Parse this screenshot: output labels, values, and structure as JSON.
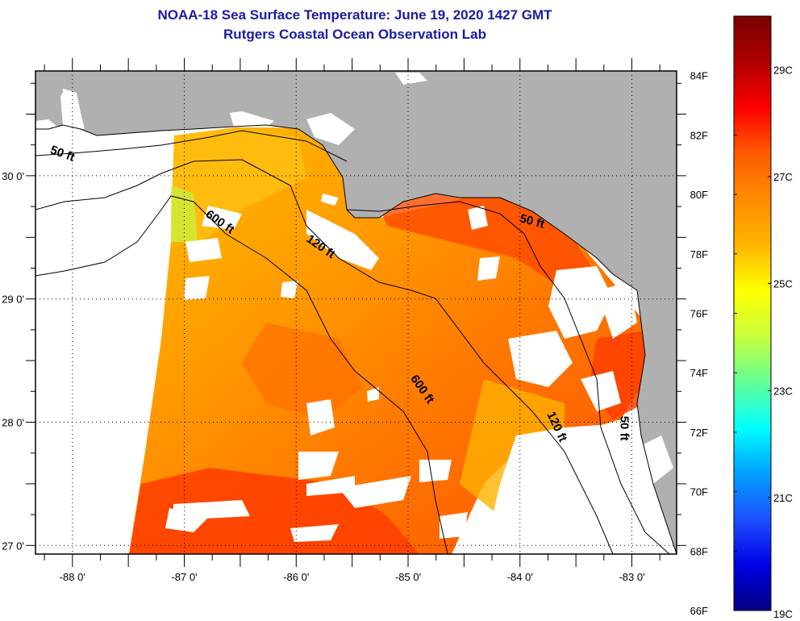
{
  "header": {
    "title": "NOAA-18 Sea Surface Temperature:  June 19, 2020 1427 GMT",
    "subtitle": "Rutgers Coastal Ocean Observation Lab"
  },
  "colors": {
    "title": "#1a1aa6",
    "land": "#b0b0b0",
    "no_data": "#ffffff",
    "contour": "#000000"
  },
  "map": {
    "lon_range": [
      -88.33,
      -82.6
    ],
    "lat_range": [
      26.93,
      30.85
    ],
    "x_ticks": [
      {
        "value": -88,
        "label": "-88 0'"
      },
      {
        "value": -87,
        "label": "-87 0'"
      },
      {
        "value": -86,
        "label": "-86 0'"
      },
      {
        "value": -85,
        "label": "-85 0'"
      },
      {
        "value": -84,
        "label": "-84 0'"
      },
      {
        "value": -83,
        "label": "-83 0'"
      }
    ],
    "y_ticks": [
      {
        "value": 30,
        "label": "30 0'"
      },
      {
        "value": 29,
        "label": "29 0'"
      },
      {
        "value": 28,
        "label": "28 0'"
      },
      {
        "value": 27,
        "label": "27 0'"
      }
    ],
    "contour_labels": [
      {
        "label": "50 ft",
        "lon": -88.1,
        "lat": 30.15
      },
      {
        "label": "600 ft",
        "lon": -86.7,
        "lat": 29.6
      },
      {
        "label": "120 ft",
        "lon": -85.8,
        "lat": 29.4
      },
      {
        "label": "50 ft",
        "lon": -83.9,
        "lat": 29.6
      },
      {
        "label": "600 ft",
        "lon": -84.9,
        "lat": 28.25
      },
      {
        "label": "120 ft",
        "lon": -83.7,
        "lat": 27.95
      },
      {
        "label": "50 ft",
        "lon": -83.1,
        "lat": 27.95
      }
    ]
  },
  "colorbar": {
    "min_f": 66,
    "max_f": 86,
    "f_ticks": [
      {
        "value": 84,
        "label": "84F"
      },
      {
        "value": 82,
        "label": "82F"
      },
      {
        "value": 80,
        "label": "80F"
      },
      {
        "value": 78,
        "label": "78F"
      },
      {
        "value": 76,
        "label": "76F"
      },
      {
        "value": 74,
        "label": "74F"
      },
      {
        "value": 72,
        "label": "72F"
      },
      {
        "value": 70,
        "label": "70F"
      },
      {
        "value": 68,
        "label": "68F"
      },
      {
        "value": 66,
        "label": "66F"
      }
    ],
    "c_ticks": [
      {
        "value": 29,
        "label": "29C"
      },
      {
        "value": 27,
        "label": "27C"
      },
      {
        "value": 25,
        "label": "25C"
      },
      {
        "value": 23,
        "label": "23C"
      },
      {
        "value": 21,
        "label": "21C"
      },
      {
        "value": 19,
        "label": "19C"
      }
    ],
    "stops": [
      "#7a0000",
      "#b00000",
      "#ff0000",
      "#ff5a00",
      "#ff8c00",
      "#ffb400",
      "#ffff00",
      "#c8ff3c",
      "#64ff96",
      "#00ffff",
      "#00a0ff",
      "#1e50ff",
      "#0000e6",
      "#000082"
    ]
  }
}
